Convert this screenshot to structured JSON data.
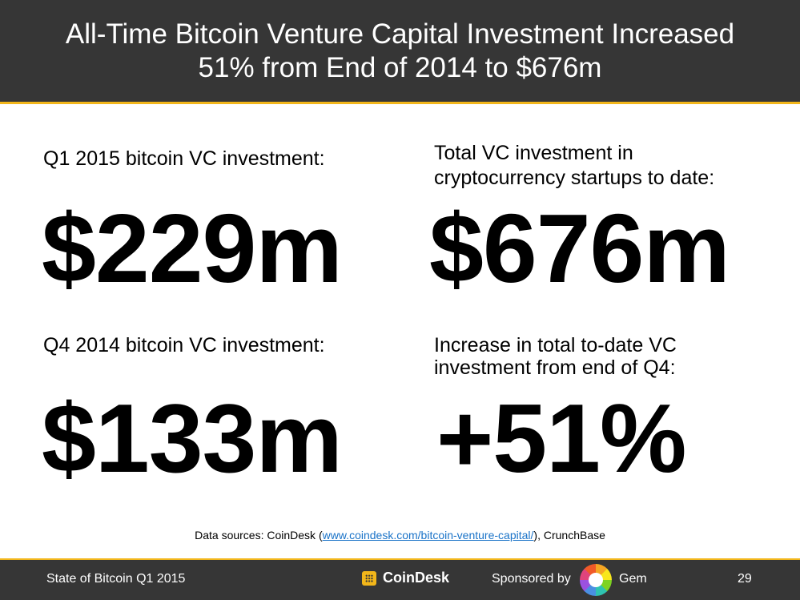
{
  "header": {
    "title_line1": "All-Time Bitcoin Venture Capital Investment Increased",
    "title_line2": "51% from End of 2014 to $676m"
  },
  "stats": {
    "q1_label": "Q1 2015 bitcoin VC investment:",
    "q1_value": "$229m",
    "total_label_line1": "Total VC investment in",
    "total_label_line2": "cryptocurrency startups to date:",
    "total_value": "$676m",
    "q4_label": "Q4 2014 bitcoin VC investment:",
    "q4_value": "$133m",
    "increase_label_line1": "Increase in total to-date VC",
    "increase_label_line2": "investment from end of Q4:",
    "increase_value": "+51%"
  },
  "sources": {
    "prefix": "Data sources: CoinDesk (",
    "link": "www.coindesk.com/bitcoin-venture-capital/",
    "suffix": "), CrunchBase"
  },
  "footer": {
    "left": "State of Bitcoin Q1 2015",
    "coindesk": "CoinDesk",
    "sponsored": "Sponsored by",
    "gem": "Gem",
    "page": "29"
  },
  "colors": {
    "header_bg": "#363636",
    "accent": "#f2b61a",
    "link": "#1a73c8"
  }
}
